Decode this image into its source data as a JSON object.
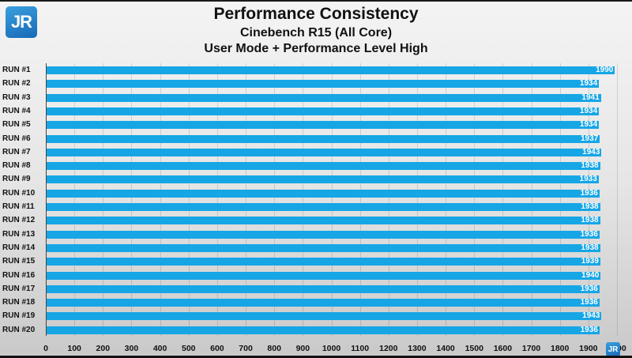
{
  "header": {
    "logo": "JR",
    "title": "Performance Consistency",
    "subtitle1": "Cinebench R15 (All Core)",
    "subtitle2": "User Mode + Performance Level High"
  },
  "colors": {
    "bar": "#16a6e6",
    "value_text": "#ffffff",
    "logo": "#1f80c8"
  },
  "chart_data": {
    "type": "bar",
    "orientation": "horizontal",
    "title": "Performance Consistency",
    "subtitle": "Cinebench R15 (All Core) — User Mode + Performance Level High",
    "xlabel": "",
    "ylabel": "",
    "xlim": [
      0,
      2000
    ],
    "grid": true,
    "legend": null,
    "categories": [
      "RUN #1",
      "RUN #2",
      "RUN #3",
      "RUN #4",
      "RUN #5",
      "RUN #6",
      "RUN #7",
      "RUN #8",
      "RUN #9",
      "RUN #10",
      "RUN #11",
      "RUN #12",
      "RUN #13",
      "RUN #14",
      "RUN #15",
      "RUN #16",
      "RUN #17",
      "RUN #18",
      "RUN #19",
      "RUN #20"
    ],
    "values": [
      1990,
      1934,
      1941,
      1934,
      1934,
      1937,
      1943,
      1938,
      1933,
      1936,
      1938,
      1938,
      1936,
      1938,
      1939,
      1940,
      1936,
      1936,
      1943,
      1936
    ],
    "x_ticks": [
      "0",
      "100",
      "200",
      "300",
      "400",
      "500",
      "600",
      "700",
      "800",
      "900",
      "1000",
      "1100",
      "1200",
      "1300",
      "1400",
      "1500",
      "1600",
      "1700",
      "1800",
      "1900",
      "2000"
    ]
  }
}
